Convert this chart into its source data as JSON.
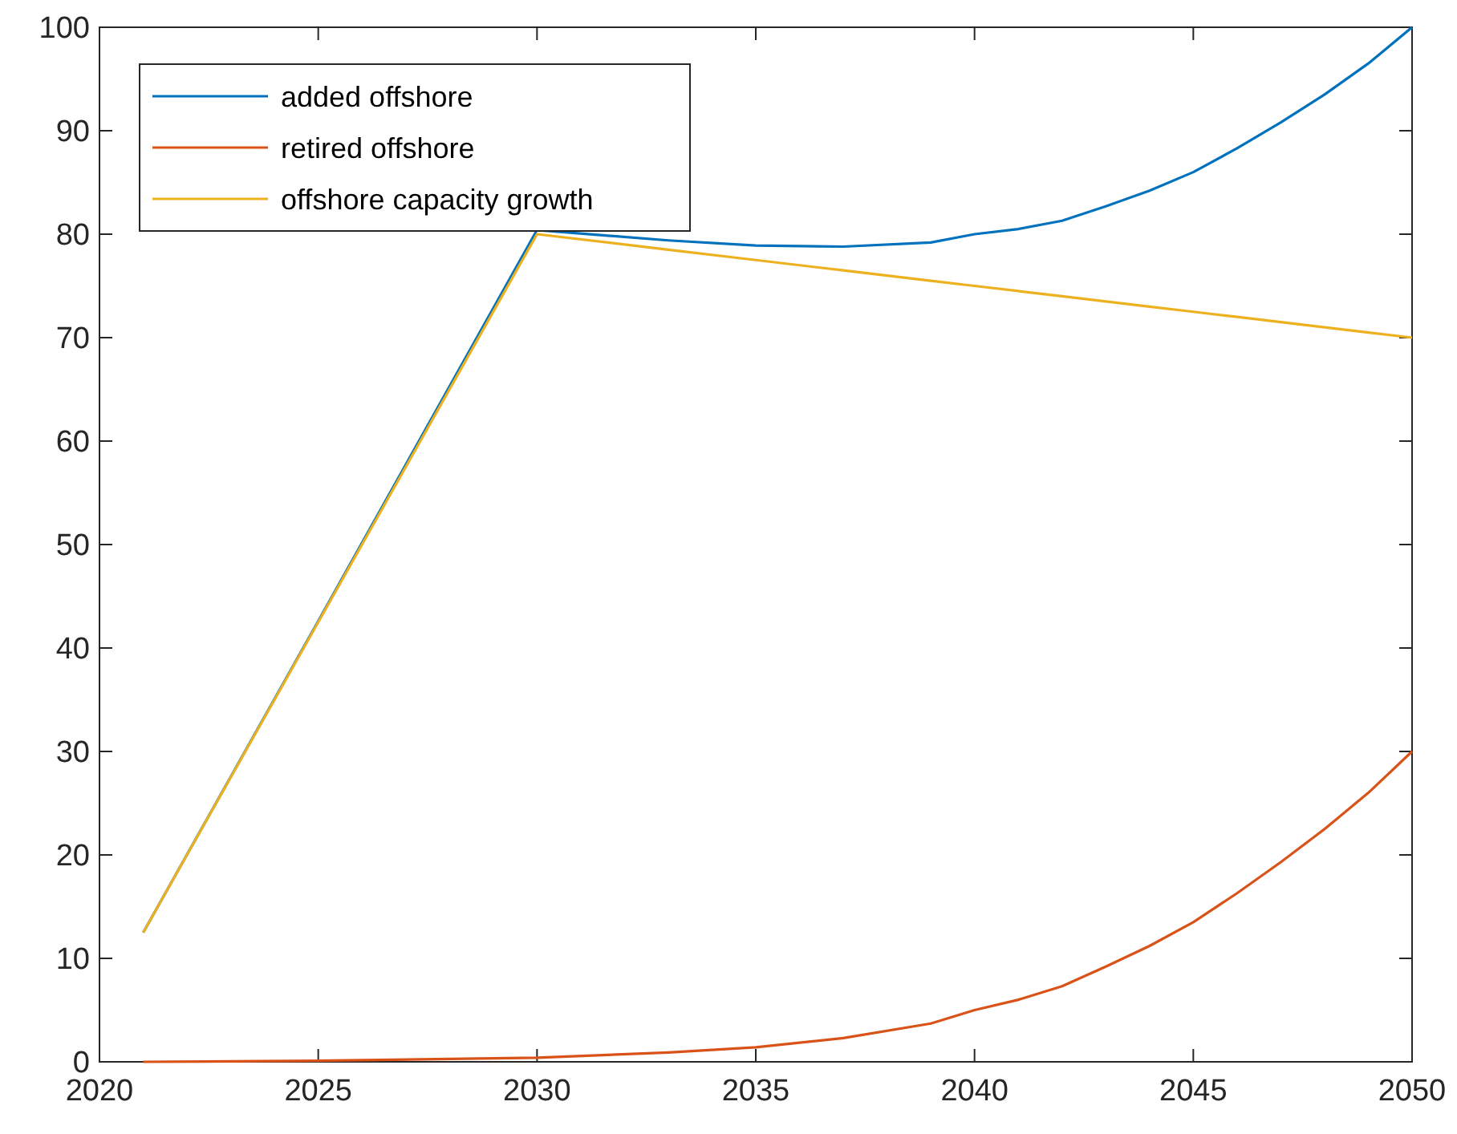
{
  "chart_data": {
    "type": "line",
    "x": [
      2021,
      2025,
      2030,
      2033,
      2035,
      2037,
      2039,
      2040,
      2041,
      2042,
      2043,
      2044,
      2045,
      2046,
      2047,
      2048,
      2049,
      2050
    ],
    "series": [
      {
        "name": "added offshore",
        "color": "#0072bd",
        "values": [
          12.5,
          42.6,
          80.4,
          79.4,
          78.9,
          78.8,
          79.2,
          80.0,
          80.5,
          81.3,
          82.7,
          84.2,
          86.0,
          88.3,
          90.8,
          93.5,
          96.5,
          100
        ]
      },
      {
        "name": "retired offshore",
        "color": "#d95319",
        "values": [
          0,
          0.1,
          0.4,
          0.9,
          1.4,
          2.3,
          3.7,
          5.0,
          6.0,
          7.3,
          9.2,
          11.2,
          13.5,
          16.3,
          19.3,
          22.5,
          26.0,
          30
        ]
      },
      {
        "name": "offshore capacity growth",
        "color": "#edb120",
        "values": [
          12.5,
          42.5,
          80,
          78.5,
          77.5,
          76.5,
          75.5,
          75,
          74.5,
          74,
          73.5,
          73,
          72.5,
          72,
          71.5,
          71,
          70.5,
          70
        ]
      }
    ],
    "xlim": [
      2020,
      2050
    ],
    "xticks": [
      2020,
      2025,
      2030,
      2035,
      2040,
      2045,
      2050
    ],
    "ylim": [
      0,
      100
    ],
    "yticks": [
      0,
      10,
      20,
      30,
      40,
      50,
      60,
      70,
      80,
      90,
      100
    ],
    "legend": "top left",
    "grid": false
  }
}
